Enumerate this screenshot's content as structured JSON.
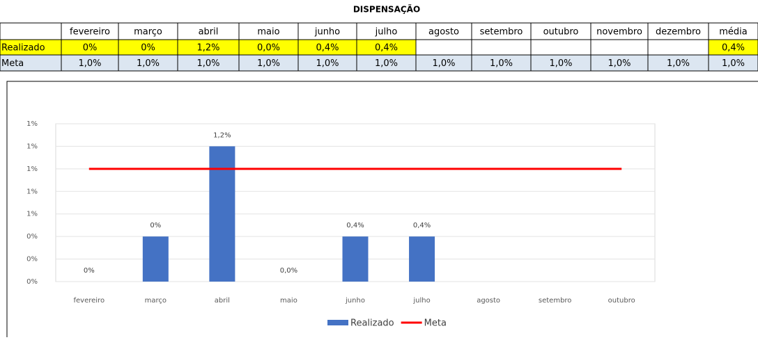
{
  "table": {
    "title": "DISPENSAÇÃO",
    "columns": [
      "fevereiro",
      "março",
      "abril",
      "maio",
      "junho",
      "julho",
      "agosto",
      "setembro",
      "outubro",
      "novembro",
      "dezembro",
      "média"
    ],
    "rows": [
      {
        "label": "Realizado",
        "cells": [
          "0%",
          "0%",
          "1,2%",
          "0,0%",
          "0,4%",
          "0,4%",
          null,
          null,
          null,
          null,
          null,
          "0,4%"
        ]
      },
      {
        "label": "Meta",
        "cells": [
          "1,0%",
          "1,0%",
          "1,0%",
          "1,0%",
          "1,0%",
          "1,0%",
          "1,0%",
          "1,0%",
          "1,0%",
          "1,0%",
          "1,0%",
          "1,0%"
        ]
      }
    ]
  },
  "chart_data": {
    "type": "bar",
    "categories": [
      "fevereiro",
      "março",
      "abril",
      "maio",
      "junho",
      "julho",
      "agosto",
      "setembro",
      "outubro"
    ],
    "series": [
      {
        "name": "Realizado",
        "type": "bar",
        "color": "#4472c4",
        "values": [
          0,
          0.4,
          1.2,
          0,
          0.4,
          0.4,
          null,
          null,
          null
        ],
        "value_labels": [
          "0%",
          "0%",
          "1,2%",
          "0,0%",
          "0,4%",
          "0,4%",
          null,
          null,
          null
        ]
      },
      {
        "name": "Meta",
        "type": "line",
        "color": "#ff0000",
        "values": [
          1,
          1,
          1,
          1,
          1,
          1,
          1,
          1,
          1
        ]
      }
    ],
    "ylim": [
      0,
      1.4
    ],
    "yticks": [
      {
        "value": 0,
        "label": "0%"
      },
      {
        "value": 0.2,
        "label": "0%"
      },
      {
        "value": 0.4,
        "label": "0%"
      },
      {
        "value": 0.6,
        "label": "1%"
      },
      {
        "value": 0.8,
        "label": "1%"
      },
      {
        "value": 1.0,
        "label": "1%"
      },
      {
        "value": 1.2,
        "label": "1%"
      },
      {
        "value": 1.4,
        "label": "1%"
      }
    ],
    "grid": true,
    "legend": "bottom"
  }
}
